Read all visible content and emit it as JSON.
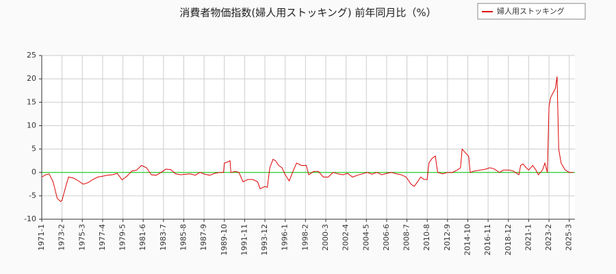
{
  "chart_data": {
    "type": "line",
    "title": "消費者物価指数(婦人用ストッキング) 前年同月比（%）",
    "x": [
      "1971-1",
      "1971-6",
      "1971-10",
      "1972-3",
      "1972-8",
      "1972-12",
      "1973-2",
      "1973-5",
      "1973-10",
      "1974-4",
      "1974-10",
      "1975-4",
      "1975-10",
      "1976-4",
      "1976-10",
      "1977-4",
      "1977-10",
      "1978-4",
      "1978-10",
      "1979-4",
      "1979-10",
      "1980-4",
      "1980-10",
      "1981-4",
      "1981-10",
      "1982-4",
      "1982-10",
      "1983-4",
      "1983-10",
      "1984-4",
      "1984-10",
      "1985-4",
      "1985-10",
      "1986-4",
      "1986-10",
      "1987-4",
      "1987-10",
      "1988-4",
      "1988-10",
      "1989-4",
      "1989-9",
      "1989-10",
      "1990-3",
      "1990-5",
      "1990-6",
      "1990-12",
      "1991-4",
      "1991-9",
      "1992-3",
      "1992-9",
      "1993-3",
      "1993-6",
      "1993-12",
      "1994-3",
      "1994-6",
      "1994-10",
      "1995-1",
      "1995-5",
      "1995-9",
      "1996-1",
      "1996-6",
      "1996-10",
      "1997-3",
      "1997-9",
      "1998-3",
      "1998-6",
      "1998-12",
      "1999-6",
      "1999-12",
      "2000-6",
      "2000-12",
      "2001-6",
      "2001-12",
      "2002-6",
      "2002-12",
      "2003-6",
      "2003-12",
      "2004-6",
      "2004-12",
      "2005-6",
      "2005-12",
      "2006-6",
      "2006-12",
      "2007-6",
      "2007-12",
      "2008-6",
      "2008-12",
      "2009-4",
      "2009-8",
      "2009-12",
      "2010-4",
      "2010-8",
      "2010-10",
      "2011-2",
      "2011-6",
      "2011-8",
      "2011-9",
      "2012-3",
      "2012-9",
      "2013-3",
      "2013-9",
      "2014-1",
      "2014-3",
      "2014-8",
      "2014-11",
      "2015-1",
      "2015-6",
      "2016-1",
      "2016-6",
      "2017-1",
      "2017-6",
      "2018-1",
      "2018-6",
      "2019-1",
      "2019-6",
      "2020-1",
      "2020-3",
      "2020-6",
      "2020-10",
      "2021-1",
      "2021-6",
      "2021-10",
      "2022-1",
      "2022-6",
      "2022-9",
      "2022-12",
      "2023-2",
      "2023-4",
      "2023-7",
      "2023-10",
      "2023-12",
      "2024-2",
      "2024-5",
      "2024-10",
      "2025-3",
      "2025-8"
    ],
    "series": [
      {
        "name": "婦人用ストッキング",
        "color": "#dd0000",
        "values": [
          -1,
          -0.5,
          -0.3,
          -2,
          -5.5,
          -6.2,
          -6,
          -4,
          -1,
          -1.2,
          -1.8,
          -2.5,
          -2.2,
          -1.5,
          -1,
          -0.8,
          -0.6,
          -0.5,
          -0.2,
          -1.6,
          -0.8,
          0.3,
          0.5,
          1.5,
          1,
          -0.5,
          -0.6,
          0,
          0.7,
          0.6,
          -0.3,
          -0.5,
          -0.4,
          -0.3,
          -0.6,
          0,
          -0.4,
          -0.6,
          -0.2,
          0,
          0,
          2,
          2.3,
          2.5,
          0,
          0.2,
          0,
          -2,
          -1.5,
          -1.5,
          -2,
          -3.5,
          -3,
          -3.2,
          1,
          2.8,
          2.5,
          1.5,
          1,
          -0.5,
          -1.8,
          0,
          2,
          1.5,
          1.5,
          -0.5,
          0.2,
          0.2,
          -1,
          -1,
          0,
          -0.3,
          -0.5,
          -0.2,
          -1,
          -0.6,
          -0.3,
          0,
          -0.4,
          0,
          -0.5,
          -0.2,
          0,
          -0.3,
          -0.5,
          -1,
          -2.5,
          -3,
          -2,
          -1,
          -1.5,
          -1.5,
          2,
          3,
          3.5,
          1,
          0,
          -0.3,
          0,
          0,
          0.5,
          1,
          5,
          4,
          3.5,
          0,
          0.3,
          0.5,
          0.6,
          1,
          0.8,
          0,
          0.5,
          0.5,
          0.3,
          -0.5,
          1.5,
          1.8,
          1,
          0.5,
          1.5,
          0.5,
          -0.5,
          0.5,
          2,
          0,
          14,
          16,
          17,
          18,
          20.5,
          5,
          2,
          0.5,
          0,
          0
        ]
      }
    ],
    "xlim": [
      "1971-1",
      "2025-10"
    ],
    "xticks": [
      "1971-1",
      "1973-2",
      "1975-3",
      "1977-4",
      "1979-5",
      "1981-6",
      "1983-7",
      "1985-8",
      "1987-9",
      "1989-10",
      "1991-11",
      "1993-12",
      "1996-1",
      "1998-2",
      "2000-3",
      "2002-4",
      "2004-5",
      "2006-6",
      "2008-7",
      "2010-8",
      "2012-9",
      "2014-10",
      "2016-11",
      "2018-12",
      "2021-1",
      "2023-2",
      "2025-3"
    ],
    "ylim": [
      -10,
      25
    ],
    "yticks": [
      -10,
      -5,
      0,
      5,
      10,
      15,
      20,
      25
    ],
    "grid": true,
    "zero_line": "#00cc00",
    "legend": "top-right"
  }
}
